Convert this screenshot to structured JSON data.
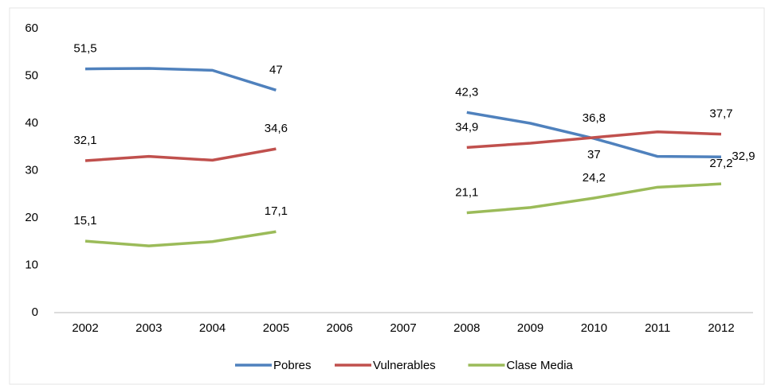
{
  "chart_data": {
    "type": "line",
    "categories": [
      "2002",
      "2003",
      "2004",
      "2005",
      "2006",
      "2007",
      "2008",
      "2009",
      "2010",
      "2011",
      "2012"
    ],
    "series": [
      {
        "name": "Pobres",
        "color": "#4f81bd",
        "values": [
          51.5,
          51.6,
          51.2,
          47,
          null,
          null,
          42.3,
          40,
          36.8,
          33.0,
          32.9
        ],
        "value_labels": [
          "51,5",
          null,
          null,
          "47",
          null,
          null,
          "42,3",
          null,
          "36,8",
          null,
          "32,9"
        ]
      },
      {
        "name": "Vulnerables",
        "color": "#c0504d",
        "values": [
          32.1,
          33.0,
          32.2,
          34.6,
          null,
          null,
          34.9,
          35.8,
          37,
          38.2,
          37.7
        ],
        "value_labels": [
          "32,1",
          null,
          null,
          "34,6",
          null,
          null,
          "34,9",
          null,
          "37",
          null,
          "37,7"
        ]
      },
      {
        "name": "Clase Media",
        "color": "#9bbb59",
        "values": [
          15.1,
          14.1,
          15.0,
          17.1,
          null,
          null,
          21.1,
          22.2,
          24.2,
          26.5,
          27.2
        ],
        "value_labels": [
          "15,1",
          null,
          null,
          "17,1",
          null,
          null,
          "21,1",
          null,
          "24,2",
          null,
          "27,2"
        ]
      }
    ],
    "ylim": [
      0,
      60
    ],
    "yticks": [
      0,
      10,
      20,
      30,
      40,
      50,
      60
    ],
    "grid": false,
    "legend": "bottom"
  }
}
